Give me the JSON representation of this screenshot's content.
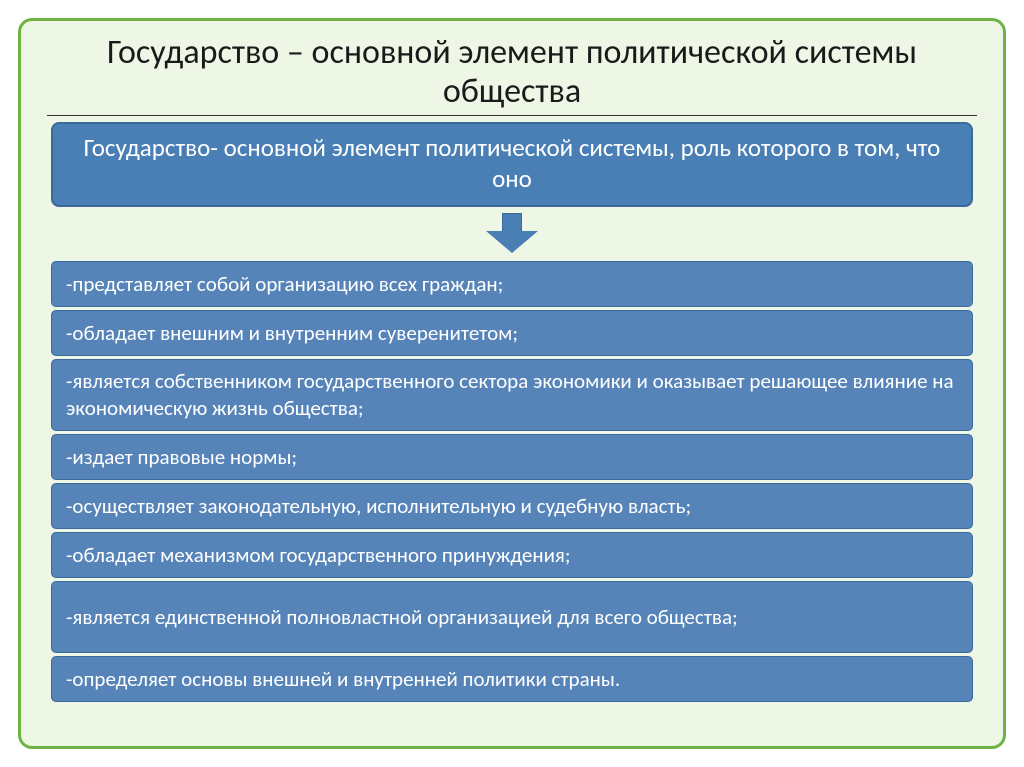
{
  "slide": {
    "background_color": "#ffffff",
    "frame_border_color": "#6fb246",
    "frame_background_color": "#eef7e6",
    "title": "Государство – основной элемент политической системы общества",
    "title_fontsize": 34,
    "title_color": "#1a1a1a",
    "header": {
      "text": "Государство- основной элемент политической системы, роль которого в том, что оно",
      "fontsize": 25,
      "text_color": "#ffffff",
      "bg_color": "#4a7fb5",
      "border_color": "#3a6a9c"
    },
    "arrow": {
      "fill_color": "#4a7fb5",
      "border_color": "#3a6a9c"
    },
    "items": [
      {
        "text": "-представляет собой организацию всех граждан;",
        "lines": 1
      },
      {
        "text": "-обладает внешним и внутренним суверенитетом;",
        "lines": 1
      },
      {
        "text": "-является собственником государственного сектора экономики и оказывает решающее влияние на экономическую жизнь общества;",
        "lines": 2
      },
      {
        "text": "-издает правовые нормы;",
        "lines": 1
      },
      {
        "text": "-осуществляет законодательную, исполнительную и судебную власть;",
        "lines": 1
      },
      {
        "text": "-обладает механизмом государственного принуждения;",
        "lines": 1
      },
      {
        "text": "-является единственной полновластной организацией для всего общества;",
        "lines": 2
      },
      {
        "text": "-определяет основы внешней и внутренней политики страны.",
        "lines": 1
      }
    ],
    "item_style": {
      "fontsize": 21,
      "text_color": "#ffffff",
      "bg_color": "#5684b8",
      "border_color": "#3a6a9c"
    }
  }
}
